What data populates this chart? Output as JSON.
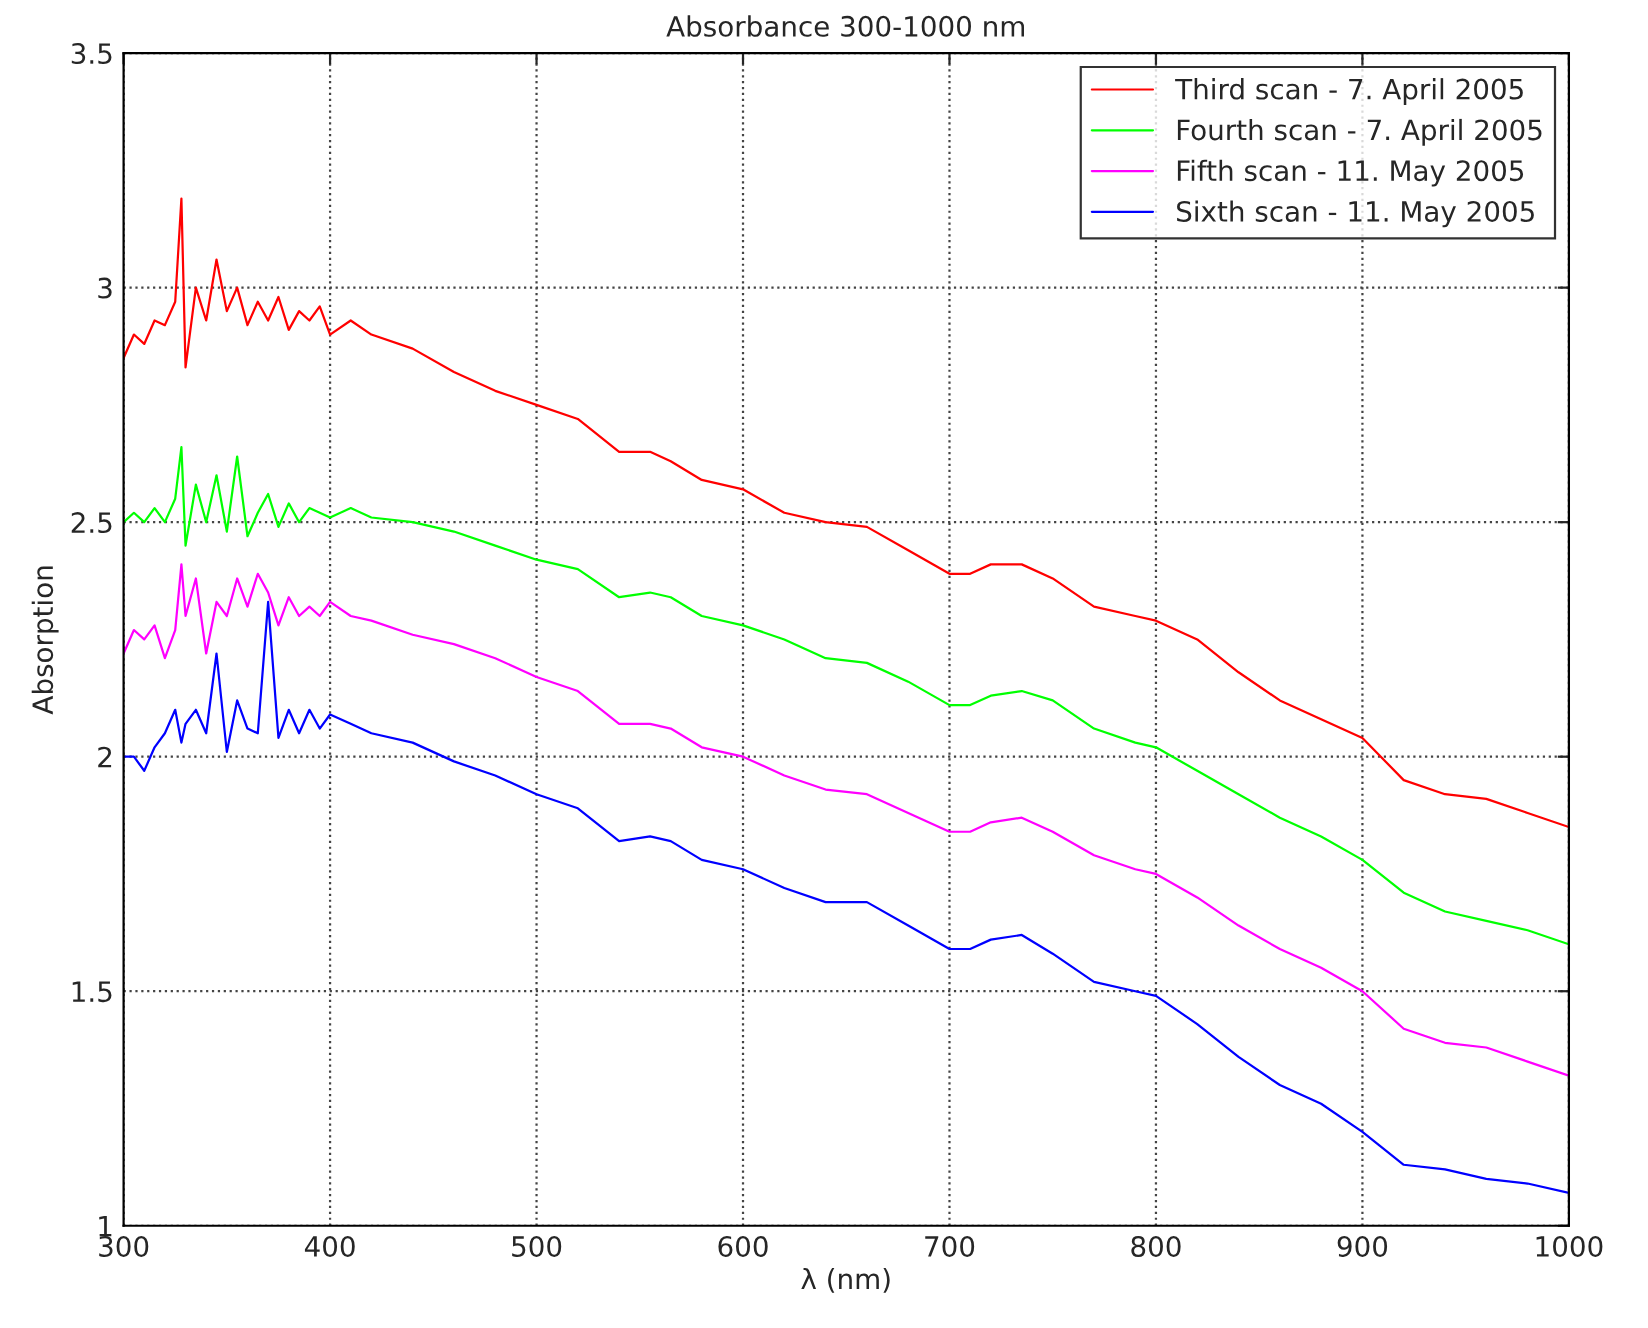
{
  "chart_data": {
    "type": "line",
    "title": "Absorbance 300-1000 nm",
    "xlabel": "λ (nm)",
    "ylabel": "Absorption",
    "x": [
      300,
      305,
      310,
      315,
      320,
      325,
      328,
      330,
      335,
      340,
      345,
      350,
      355,
      360,
      365,
      370,
      375,
      380,
      385,
      390,
      395,
      400,
      410,
      420,
      440,
      460,
      480,
      500,
      520,
      540,
      555,
      565,
      580,
      600,
      620,
      640,
      660,
      680,
      700,
      710,
      720,
      735,
      750,
      770,
      790,
      800,
      820,
      840,
      860,
      880,
      900,
      920,
      940,
      960,
      980,
      1000
    ],
    "series": [
      {
        "name": "Third scan - 7. April 2005",
        "color": "#ff0000",
        "values": [
          2.85,
          2.9,
          2.88,
          2.93,
          2.92,
          2.97,
          3.19,
          2.83,
          3.0,
          2.93,
          3.06,
          2.95,
          3.0,
          2.92,
          2.97,
          2.93,
          2.98,
          2.91,
          2.95,
          2.93,
          2.96,
          2.9,
          2.93,
          2.9,
          2.87,
          2.82,
          2.78,
          2.75,
          2.72,
          2.65,
          2.65,
          2.63,
          2.59,
          2.57,
          2.52,
          2.5,
          2.49,
          2.44,
          2.39,
          2.39,
          2.41,
          2.41,
          2.38,
          2.32,
          2.3,
          2.29,
          2.25,
          2.18,
          2.12,
          2.08,
          2.04,
          1.95,
          1.92,
          1.91,
          1.88,
          1.85
        ]
      },
      {
        "name": "Fourth scan - 7. April 2005",
        "color": "#00ff00",
        "values": [
          2.5,
          2.52,
          2.5,
          2.53,
          2.5,
          2.55,
          2.66,
          2.45,
          2.58,
          2.5,
          2.6,
          2.48,
          2.64,
          2.47,
          2.52,
          2.56,
          2.49,
          2.54,
          2.5,
          2.53,
          2.52,
          2.51,
          2.53,
          2.51,
          2.5,
          2.48,
          2.45,
          2.42,
          2.4,
          2.34,
          2.35,
          2.34,
          2.3,
          2.28,
          2.25,
          2.21,
          2.2,
          2.16,
          2.11,
          2.11,
          2.13,
          2.14,
          2.12,
          2.06,
          2.03,
          2.02,
          1.97,
          1.92,
          1.87,
          1.83,
          1.78,
          1.71,
          1.67,
          1.65,
          1.63,
          1.6
        ]
      },
      {
        "name": "Fifth scan - 11. May 2005",
        "color": "#ff00ff",
        "values": [
          2.22,
          2.27,
          2.25,
          2.28,
          2.21,
          2.27,
          2.41,
          2.3,
          2.38,
          2.22,
          2.33,
          2.3,
          2.38,
          2.32,
          2.39,
          2.35,
          2.28,
          2.34,
          2.3,
          2.32,
          2.3,
          2.33,
          2.3,
          2.29,
          2.26,
          2.24,
          2.21,
          2.17,
          2.14,
          2.07,
          2.07,
          2.06,
          2.02,
          2.0,
          1.96,
          1.93,
          1.92,
          1.88,
          1.84,
          1.84,
          1.86,
          1.87,
          1.84,
          1.79,
          1.76,
          1.75,
          1.7,
          1.64,
          1.59,
          1.55,
          1.5,
          1.42,
          1.39,
          1.38,
          1.35,
          1.32
        ]
      },
      {
        "name": "Sixth scan - 11. May 2005",
        "color": "#0000ff",
        "values": [
          2.0,
          2.0,
          1.97,
          2.02,
          2.05,
          2.1,
          2.03,
          2.07,
          2.1,
          2.05,
          2.22,
          2.01,
          2.12,
          2.06,
          2.05,
          2.33,
          2.04,
          2.1,
          2.05,
          2.1,
          2.06,
          2.09,
          2.07,
          2.05,
          2.03,
          1.99,
          1.96,
          1.92,
          1.89,
          1.82,
          1.83,
          1.82,
          1.78,
          1.76,
          1.72,
          1.69,
          1.69,
          1.64,
          1.59,
          1.59,
          1.61,
          1.62,
          1.58,
          1.52,
          1.5,
          1.49,
          1.43,
          1.36,
          1.3,
          1.26,
          1.2,
          1.13,
          1.12,
          1.1,
          1.09,
          1.07
        ]
      }
    ],
    "xlim": [
      300,
      1000
    ],
    "ylim": [
      1,
      3.5
    ],
    "xticks": [
      300,
      400,
      500,
      600,
      700,
      800,
      900,
      1000
    ],
    "yticks": [
      1,
      1.5,
      2,
      2.5,
      3,
      3.5
    ],
    "grid": true,
    "legend": "top right",
    "marker": "none",
    "line_style": "solid"
  }
}
